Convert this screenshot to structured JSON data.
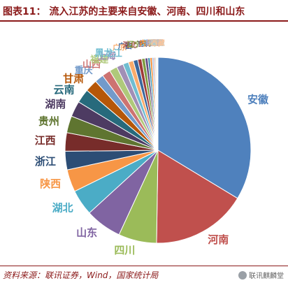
{
  "figure": {
    "title": "图表11：  流入江苏的主要来自安徽、河南、四川和山东",
    "source": "资料来源：联讯证券，Wind，国家统计局",
    "watermark": "联讯麒麟堂"
  },
  "chart_data": {
    "type": "pie",
    "title": "",
    "start_angle_deg": 0,
    "direction": "clockwise",
    "slices": [
      {
        "label": "安徽",
        "value": 34.5,
        "color": "#4F81BD"
      },
      {
        "label": "河南",
        "value": 17.0,
        "color": "#C0504D"
      },
      {
        "label": "四川",
        "value": 6.8,
        "color": "#9BBB59"
      },
      {
        "label": "山东",
        "value": 6.5,
        "color": "#8064A2"
      },
      {
        "label": "湖北",
        "value": 4.6,
        "color": "#4BACC6"
      },
      {
        "label": "陕西",
        "value": 4.0,
        "color": "#F79646"
      },
      {
        "label": "浙江",
        "value": 3.3,
        "color": "#2C4D75"
      },
      {
        "label": "江西",
        "value": 3.3,
        "color": "#772C2A"
      },
      {
        "label": "贵州",
        "value": 3.0,
        "color": "#5F7530"
      },
      {
        "label": "湖南",
        "value": 2.8,
        "color": "#4D3B62"
      },
      {
        "label": "云南",
        "value": 2.5,
        "color": "#276A7C"
      },
      {
        "label": "甘肃",
        "value": 2.2,
        "color": "#B65708"
      },
      {
        "label": "重庆",
        "value": 1.6,
        "color": "#729ACA"
      },
      {
        "label": "山西",
        "value": 1.5,
        "color": "#CD7371"
      },
      {
        "label": "福建",
        "value": 1.4,
        "color": "#AFC97A"
      },
      {
        "label": "上海",
        "value": 1.2,
        "color": "#A18FB6"
      },
      {
        "label": "黑龙江",
        "value": 1.0,
        "color": "#6FBDD1"
      },
      {
        "label": "广东",
        "value": 0.9,
        "color": "#F9AB6B"
      },
      {
        "label": "广西",
        "value": 0.8,
        "color": "#3A679C"
      },
      {
        "label": "河北",
        "value": 0.7,
        "color": "#9F3B38"
      },
      {
        "label": "辽宁",
        "value": 0.6,
        "color": "#7E9C40"
      },
      {
        "label": "吉林",
        "value": 0.5,
        "color": "#664F83"
      },
      {
        "label": "北京",
        "value": 0.4,
        "color": "#358EA6"
      },
      {
        "label": "内蒙古",
        "value": 0.35,
        "color": "#F47F1A"
      },
      {
        "label": "新疆",
        "value": 0.3,
        "color": "#9BB3D8"
      },
      {
        "label": "天津",
        "value": 0.25,
        "color": "#DA9E9D"
      },
      {
        "label": "海南",
        "value": 0.2,
        "color": "#C6D9A6"
      },
      {
        "label": "宁夏",
        "value": 0.15,
        "color": "#BDB0CF"
      },
      {
        "label": "青海",
        "value": 0.1,
        "color": "#9CD0DF"
      },
      {
        "label": "西藏",
        "value": 0.05,
        "color": "#FAC49A"
      }
    ]
  }
}
